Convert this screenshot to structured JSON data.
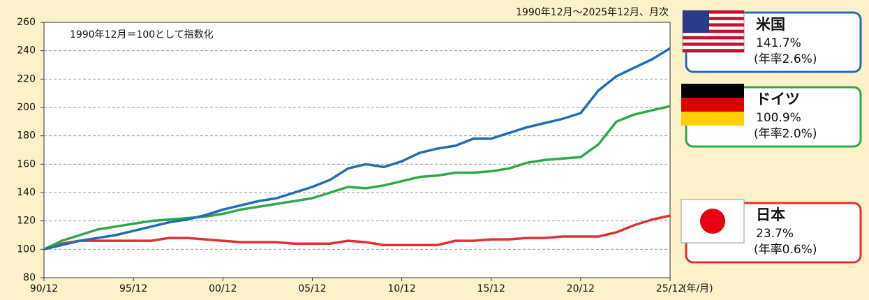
{
  "chart_data": {
    "type": "line",
    "note": "1990年12月～2025年12月、月次",
    "annotation": "1990年12月＝100として指数化",
    "x_label": "(年/月)",
    "categories": [
      "90/12",
      null,
      null,
      null,
      null,
      "95/12",
      null,
      null,
      null,
      null,
      "00/12",
      null,
      null,
      null,
      null,
      "05/12",
      null,
      null,
      null,
      null,
      "10/12",
      null,
      null,
      null,
      null,
      "15/12",
      null,
      null,
      null,
      null,
      "20/12",
      null,
      null,
      null,
      null,
      "25/12"
    ],
    "ylim": [
      80,
      260
    ],
    "yticks": [
      80,
      100,
      120,
      140,
      160,
      180,
      200,
      220,
      240,
      260
    ],
    "grid": true,
    "series": [
      {
        "name": "米国",
        "color": "#1f6db5",
        "change": "141.7%",
        "annual": "(年率2.6%)",
        "values": [
          100,
          103,
          106,
          108,
          110,
          113,
          116,
          119,
          121,
          124,
          128,
          131,
          134,
          136,
          140,
          144,
          149,
          157,
          160,
          158,
          162,
          168,
          171,
          173,
          178,
          178,
          182,
          186,
          189,
          192,
          196,
          212,
          222,
          228,
          234,
          241.7
        ]
      },
      {
        "name": "ドイツ",
        "color": "#2ea84a",
        "change": "100.9%",
        "annual": "(年率2.0%)",
        "values": [
          100,
          106,
          110,
          114,
          116,
          118,
          120,
          121,
          122,
          123,
          125,
          128,
          130,
          132,
          134,
          136,
          140,
          144,
          143,
          145,
          148,
          151,
          152,
          154,
          154,
          155,
          157,
          161,
          163,
          164,
          165,
          174,
          190,
          195,
          198,
          200.9
        ]
      },
      {
        "name": "日本",
        "color": "#e03030",
        "change": "23.7%",
        "annual": "(年率0.6%)",
        "values": [
          100,
          104,
          106,
          106,
          106,
          106,
          106,
          108,
          108,
          107,
          106,
          105,
          105,
          105,
          104,
          104,
          104,
          106,
          105,
          103,
          103,
          103,
          103,
          106,
          106,
          107,
          107,
          108,
          108,
          109,
          109,
          109,
          112,
          117,
          121,
          123.7
        ]
      }
    ]
  }
}
